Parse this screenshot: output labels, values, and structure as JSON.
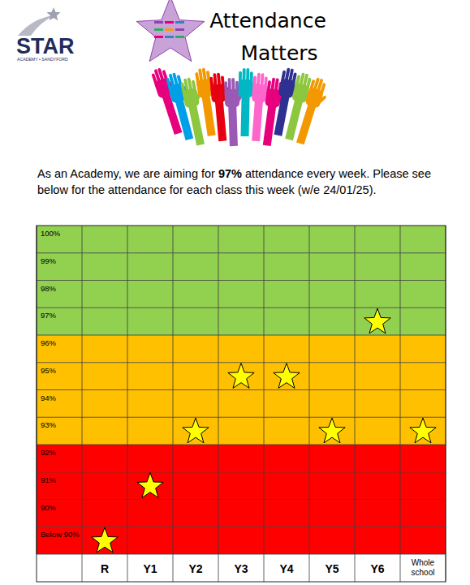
{
  "header": {
    "logo": "STAR",
    "logo_subtitle": "ACADEMY • SANDYFORD",
    "title_lines": [
      "Attendance",
      "Matters"
    ]
  },
  "intro": {
    "parts": [
      {
        "text": "As an Academy, we are aiming for ",
        "bold": false
      },
      {
        "text": "97%",
        "bold": true
      },
      {
        "text": " attendance every week. Please see below for the attendance for each class this week (w/e 24/01/25).",
        "bold": false
      }
    ]
  },
  "chart_data": {
    "type": "scatter",
    "marker": "star",
    "color": "#ffff00",
    "categories": [
      "R",
      "Y1",
      "Y2",
      "Y3",
      "Y4",
      "Y5",
      "Y6",
      "Whole school"
    ],
    "values": [
      89,
      91,
      93,
      95,
      95,
      93,
      97,
      93
    ],
    "ylim": [
      88.5,
      100.5
    ],
    "yticks": [
      {
        "value": 100,
        "label": "100%"
      },
      {
        "value": 99,
        "label": "99%"
      },
      {
        "value": 98,
        "label": "98%"
      },
      {
        "value": 97,
        "label": "97%"
      },
      {
        "value": 96,
        "label": "96%"
      },
      {
        "value": 95,
        "label": "95%"
      },
      {
        "value": 94,
        "label": "94%"
      },
      {
        "value": 93,
        "label": "93%"
      },
      {
        "value": 92,
        "label": "92%"
      },
      {
        "value": 91,
        "label": "91%"
      },
      {
        "value": 90,
        "label": "90%"
      },
      {
        "value": 89,
        "label": "Below 90%"
      }
    ],
    "grid": true,
    "bands": [
      {
        "from": 97,
        "to": 100,
        "color": "#92d050"
      },
      {
        "from": 93,
        "to": 96,
        "color": "#ffc000"
      },
      {
        "from": 89,
        "to": 92,
        "color": "#ff0000"
      }
    ]
  }
}
